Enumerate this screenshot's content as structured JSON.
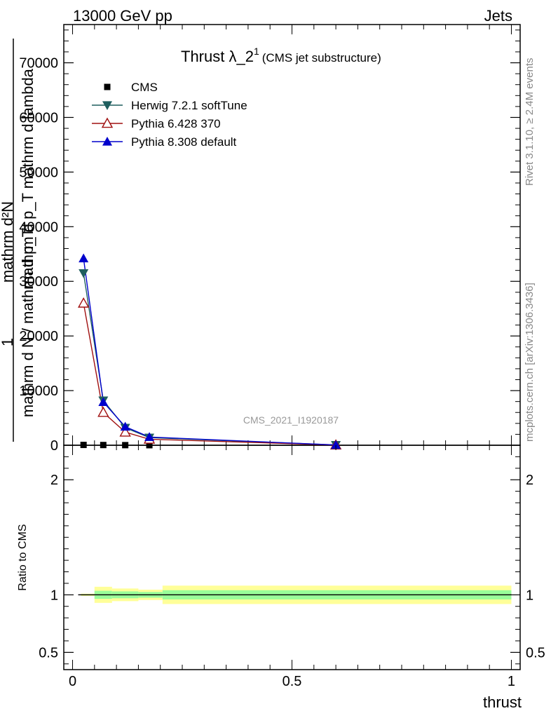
{
  "header": {
    "left": "13000 GeV pp",
    "right": "Jets"
  },
  "side_text": {
    "top": "Rivet 3.1.10, ≥ 2.4M events",
    "bottom": "mcplots.cern.ch [arXiv:1306.3436]"
  },
  "watermark": "CMS_2021_I1920187",
  "chart_data": [
    {
      "type": "line",
      "title": "Thrust λ_2",
      "title_sup": "1",
      "subtitle": "(CMS jet substructure)",
      "ylabel_top": "mathrm d²N",
      "ylabel_mid": "mathrm d p_T mathrm d lambda",
      "ylabel_one": "1",
      "ylabel_bottom": "mathrm d N / mathrm d p_T",
      "xlim": [
        -0.02,
        1.02
      ],
      "ylim": [
        0,
        77000
      ],
      "y_ticks": [
        {
          "v": 0,
          "label": "0"
        },
        {
          "v": 10000,
          "label": "10000"
        },
        {
          "v": 20000,
          "label": "20000"
        },
        {
          "v": 30000,
          "label": "30000"
        },
        {
          "v": 40000,
          "label": "40000"
        },
        {
          "v": 50000,
          "label": "50000"
        },
        {
          "v": 60000,
          "label": "60000"
        },
        {
          "v": 70000,
          "label": "70000"
        }
      ],
      "legend_placement": "top-left",
      "series": [
        {
          "name": "CMS",
          "marker": "square",
          "color": "#000000",
          "x": [
            0.025,
            0.07,
            0.12,
            0.175,
            0.6
          ],
          "y": [
            60,
            40,
            20,
            8,
            1
          ]
        },
        {
          "name": "Herwig 7.2.1 softTune",
          "marker": "triangle-down",
          "color": "#1f5f5f",
          "x": [
            0.025,
            0.07,
            0.12,
            0.175,
            0.6
          ],
          "y": [
            31500,
            8200,
            3200,
            1400,
            50
          ]
        },
        {
          "name": "Pythia 6.428 370",
          "marker": "triangle-up-open",
          "color": "#a01010",
          "x": [
            0.025,
            0.07,
            0.12,
            0.175,
            0.6
          ],
          "y": [
            26000,
            6000,
            2400,
            1100,
            40
          ]
        },
        {
          "name": "Pythia 8.308 default",
          "marker": "triangle-up",
          "color": "#0000cc",
          "x": [
            0.025,
            0.07,
            0.12,
            0.175,
            0.6
          ],
          "y": [
            34200,
            7900,
            3400,
            1500,
            50
          ]
        }
      ]
    },
    {
      "type": "area",
      "ylabel": "Ratio to CMS",
      "xlabel": "thrust",
      "xlim": [
        -0.02,
        1.02
      ],
      "ylim": [
        0.35,
        2.3
      ],
      "x_ticks": [
        {
          "v": 0,
          "label": "0"
        },
        {
          "v": 0.5,
          "label": "0.5"
        },
        {
          "v": 1,
          "label": "1"
        }
      ],
      "y_ticks": [
        {
          "v": 0.5,
          "label": "0.5"
        },
        {
          "v": 1,
          "label": "1"
        },
        {
          "v": 2,
          "label": "2"
        }
      ],
      "reference": 1,
      "bins": [
        {
          "x0": 0.0,
          "x1": 0.05,
          "stat": 0.005,
          "total": 0.01
        },
        {
          "x0": 0.05,
          "x1": 0.09,
          "stat": 0.035,
          "total": 0.07
        },
        {
          "x0": 0.09,
          "x1": 0.15,
          "stat": 0.03,
          "total": 0.055
        },
        {
          "x0": 0.15,
          "x1": 0.205,
          "stat": 0.025,
          "total": 0.045
        },
        {
          "x0": 0.205,
          "x1": 1.0,
          "stat": 0.04,
          "total": 0.08
        }
      ],
      "colors": {
        "total": "#ffff99",
        "stat": "#99ff99"
      }
    }
  ]
}
